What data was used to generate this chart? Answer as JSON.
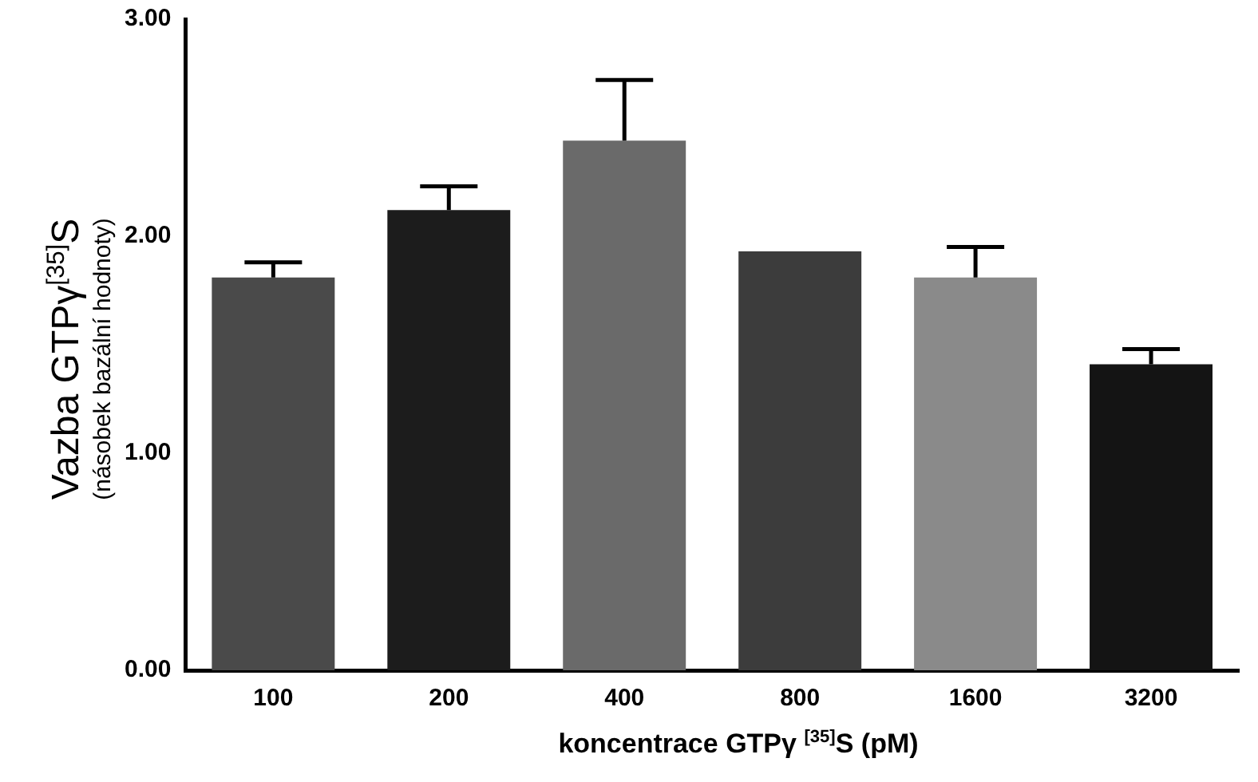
{
  "chart_data": {
    "type": "bar",
    "categories": [
      "100",
      "200",
      "400",
      "800",
      "1600",
      "3200"
    ],
    "values": [
      1.81,
      2.12,
      2.44,
      1.93,
      1.81,
      1.41
    ],
    "errors": [
      0.07,
      0.11,
      0.28,
      null,
      0.14,
      0.07
    ],
    "colors": [
      "#4a4a4a",
      "#1c1c1c",
      "#6a6a6a",
      "#3c3c3c",
      "#8a8a8a",
      "#141414"
    ],
    "ylim": [
      0,
      3
    ],
    "yticks": [
      {
        "value": 0,
        "label": "0.00"
      },
      {
        "value": 1,
        "label": "1.00"
      },
      {
        "value": 2,
        "label": "2.00"
      },
      {
        "value": 3,
        "label": "3.00"
      }
    ],
    "ylabel": "Vazba GTPγ$^{[35]}$S\n(násobek bazální hodnoty)",
    "xlabel": "koncentrace GTPγ $^{[35]}$S (pM)",
    "grid": false,
    "legend": false
  }
}
